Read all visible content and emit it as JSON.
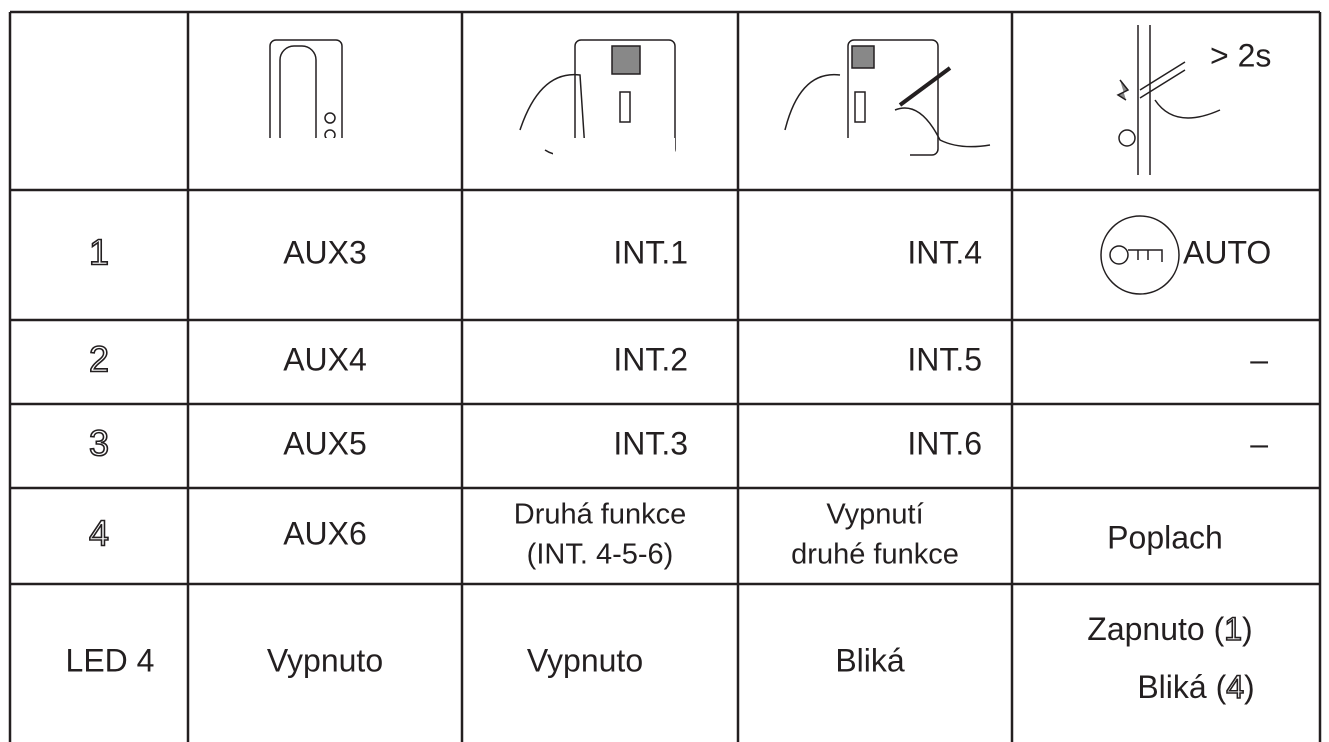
{
  "header": {
    "illustration_note": "> 2s"
  },
  "rows": [
    {
      "label": "1",
      "cells": [
        "AUX3",
        "INT.1",
        "INT.4",
        "AUTO"
      ]
    },
    {
      "label": "2",
      "cells": [
        "AUX4",
        "INT.2",
        "INT.5",
        "–"
      ]
    },
    {
      "label": "3",
      "cells": [
        "AUX5",
        "INT.3",
        "INT.6",
        "–"
      ]
    },
    {
      "label": "4",
      "cells": [
        "AUX6",
        [
          "Druhá funkce",
          "(INT. 4-5-6)"
        ],
        [
          "Vypnutí",
          "druhé funkce"
        ],
        "Poplach"
      ]
    },
    {
      "label": "LED 4",
      "cells": [
        "Vypnuto",
        "Vypnuto",
        "Bliká",
        [
          [
            "Zapnuto (",
            "1",
            ")"
          ],
          [
            "Bliká (",
            "4",
            ")"
          ]
        ]
      ]
    }
  ]
}
